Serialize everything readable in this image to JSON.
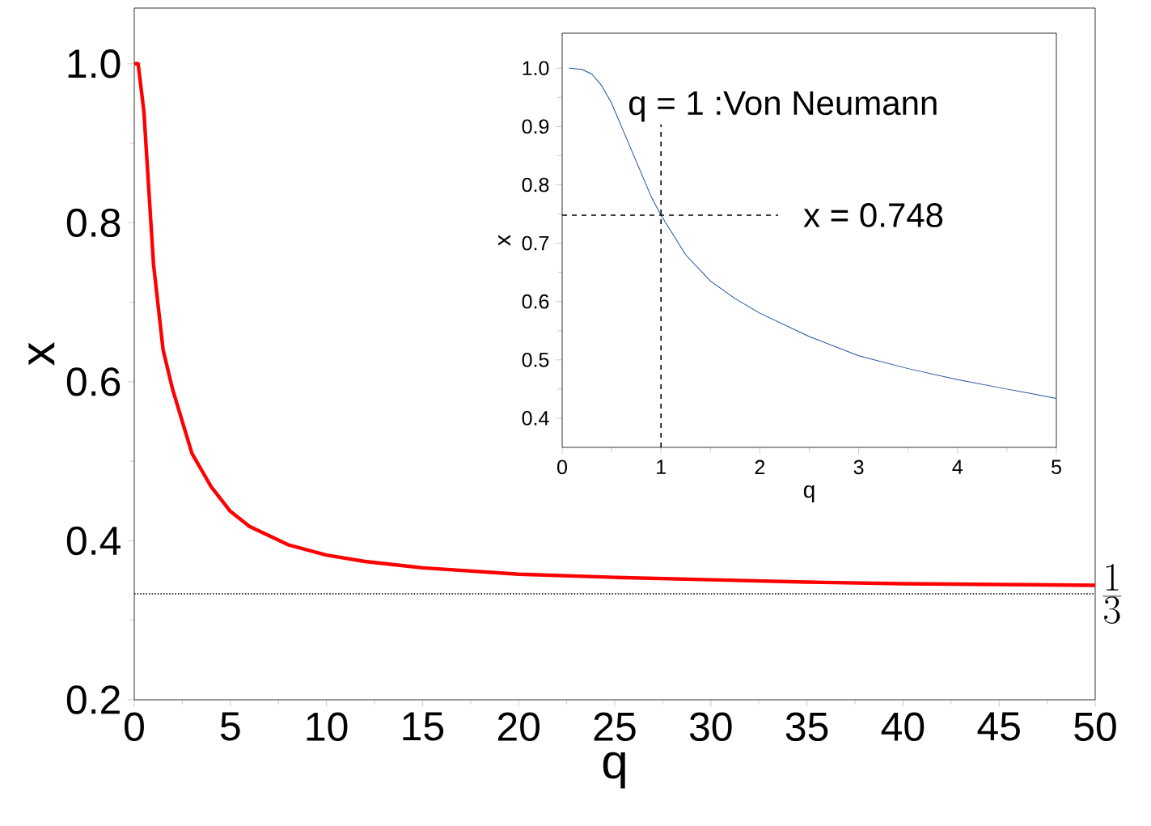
{
  "chart_data": [
    {
      "type": "line",
      "xlabel": "q",
      "ylabel": "x",
      "xlim": [
        0,
        50
      ],
      "ylim": [
        0.2,
        1.07
      ],
      "xticks": [
        0,
        5,
        10,
        15,
        20,
        25,
        30,
        35,
        40,
        45,
        50
      ],
      "yticks": [
        0.2,
        0.4,
        0.6,
        0.8,
        {
          "value": 1,
          "label": "1.0"
        }
      ],
      "series": [
        {
          "color": "#ff0000",
          "x": [
            0,
            0.2,
            0.5,
            1,
            1.5,
            2,
            3,
            4,
            5,
            6,
            8,
            10,
            12,
            15,
            20,
            25,
            30,
            35,
            40,
            45,
            50
          ],
          "values": [
            1.0,
            1.0,
            0.94,
            0.748,
            0.64,
            0.59,
            0.51,
            0.468,
            0.437,
            0.418,
            0.395,
            0.382,
            0.374,
            0.366,
            0.358,
            0.354,
            0.351,
            0.348,
            0.346,
            0.345,
            0.344
          ]
        }
      ],
      "ref_lines": [
        {
          "axis": "y",
          "value": 0.3333,
          "label": "\\frac{1}{3}",
          "line_style": "dotted",
          "color": "#000000"
        }
      ]
    },
    {
      "type": "line",
      "xlabel": "q",
      "ylabel": "x",
      "xlim": [
        0,
        5
      ],
      "ylim": [
        0.35,
        1.06
      ],
      "xticks": [
        0,
        1,
        2,
        3,
        4,
        5
      ],
      "yticks": [
        0.4,
        0.5,
        0.6,
        0.7,
        0.8,
        0.9,
        {
          "value": 1,
          "label": "1.0"
        }
      ],
      "series": [
        {
          "color": "#1f4e9a",
          "x": [
            0.07,
            0.2,
            0.3,
            0.4,
            0.5,
            0.6,
            0.75,
            0.9,
            1,
            1.25,
            1.5,
            1.75,
            2,
            2.5,
            3,
            3.5,
            4,
            4.5,
            5
          ],
          "values": [
            1.0,
            0.998,
            0.99,
            0.97,
            0.94,
            0.9,
            0.84,
            0.78,
            0.748,
            0.68,
            0.635,
            0.605,
            0.58,
            0.54,
            0.507,
            0.485,
            0.466,
            0.45,
            0.434
          ]
        }
      ],
      "ref_lines": [
        {
          "axis": "x",
          "value": 1,
          "label": "q = 1   :Von Neumann",
          "line_style": "dashed",
          "color": "#000000"
        },
        {
          "axis": "y",
          "value": 0.748,
          "label": "x = 0.748",
          "line_style": "dashed",
          "color": "#000000"
        }
      ]
    }
  ]
}
